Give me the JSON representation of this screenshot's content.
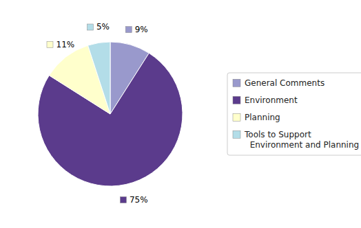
{
  "chart_data": {
    "type": "pie",
    "categories": [
      "General Comments",
      "Environment",
      "Planning",
      "Tools to Support\n  Environment and Planning"
    ],
    "values": [
      9,
      75,
      11,
      5
    ],
    "value_labels": [
      "9%",
      "75%",
      "11%",
      "5%"
    ],
    "colors": [
      "#9999cc",
      "#5b3b8c",
      "#ffffcc",
      "#b3dde8"
    ],
    "data_labels": true,
    "legend": "right"
  }
}
